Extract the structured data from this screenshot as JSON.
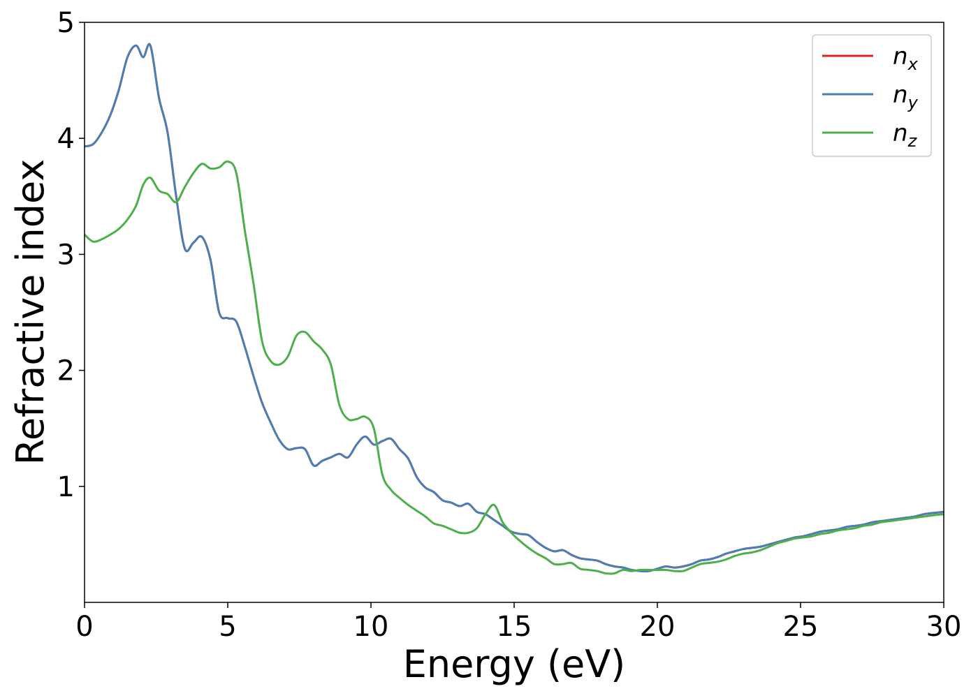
{
  "chart_data": {
    "type": "line",
    "title": "",
    "xlabel": "Energy (eV)",
    "ylabel": "Refractive index",
    "xlim": [
      0,
      30
    ],
    "ylim": [
      0,
      5
    ],
    "xticks": [
      0,
      5,
      10,
      15,
      20,
      25,
      30
    ],
    "yticks": [
      1,
      2,
      3,
      4,
      5
    ],
    "grid": false,
    "legend": "top-right",
    "series": [
      {
        "name": "n",
        "sub": "x",
        "color": "#d62728",
        "x": [
          0,
          0.3,
          0.6,
          0.9,
          1.2,
          1.5,
          1.8,
          2.05,
          2.3,
          2.6,
          2.9,
          3.2,
          3.5,
          3.8,
          4.1,
          4.4,
          4.7,
          5.0,
          5.3,
          5.6,
          5.9,
          6.2,
          6.5,
          6.8,
          7.1,
          7.4,
          7.7,
          8.0,
          8.3,
          8.6,
          8.9,
          9.2,
          9.5,
          9.8,
          10.1,
          10.4,
          10.7,
          11.0,
          11.3,
          11.6,
          11.9,
          12.2,
          12.5,
          12.8,
          13.1,
          13.4,
          13.7,
          14.0,
          14.3,
          14.6,
          14.9,
          15.2,
          15.5,
          15.8,
          16.1,
          16.4,
          16.7,
          17.0,
          17.3,
          17.6,
          17.9,
          18.2,
          18.5,
          18.8,
          19.1,
          19.4,
          19.7,
          20.0,
          20.3,
          20.6,
          20.9,
          21.2,
          21.5,
          21.8,
          22.1,
          22.4,
          22.7,
          23.0,
          23.3,
          23.6,
          23.9,
          24.2,
          24.5,
          24.8,
          25.1,
          25.4,
          25.7,
          26.0,
          26.3,
          26.6,
          26.9,
          27.2,
          27.5,
          27.8,
          28.1,
          28.4,
          28.7,
          29.0,
          29.3,
          29.6,
          30.0
        ],
        "y": [
          3.93,
          3.95,
          4.05,
          4.2,
          4.42,
          4.7,
          4.8,
          4.7,
          4.8,
          4.35,
          4.05,
          3.5,
          3.05,
          3.1,
          3.15,
          2.95,
          2.5,
          2.45,
          2.42,
          2.2,
          1.95,
          1.72,
          1.55,
          1.4,
          1.32,
          1.33,
          1.32,
          1.18,
          1.22,
          1.25,
          1.28,
          1.25,
          1.36,
          1.43,
          1.36,
          1.39,
          1.41,
          1.32,
          1.24,
          1.08,
          0.99,
          0.95,
          0.88,
          0.86,
          0.83,
          0.85,
          0.78,
          0.76,
          0.71,
          0.66,
          0.61,
          0.59,
          0.58,
          0.52,
          0.47,
          0.44,
          0.45,
          0.41,
          0.38,
          0.37,
          0.36,
          0.33,
          0.31,
          0.3,
          0.28,
          0.27,
          0.27,
          0.29,
          0.31,
          0.3,
          0.31,
          0.33,
          0.36,
          0.37,
          0.39,
          0.42,
          0.44,
          0.46,
          0.47,
          0.48,
          0.5,
          0.52,
          0.54,
          0.56,
          0.57,
          0.59,
          0.61,
          0.62,
          0.63,
          0.65,
          0.66,
          0.67,
          0.69,
          0.7,
          0.71,
          0.72,
          0.73,
          0.74,
          0.76,
          0.77,
          0.78
        ]
      },
      {
        "name": "n",
        "sub": "y",
        "color": "#4a7fb6",
        "x": [
          0,
          0.3,
          0.6,
          0.9,
          1.2,
          1.5,
          1.8,
          2.05,
          2.3,
          2.6,
          2.9,
          3.2,
          3.5,
          3.8,
          4.1,
          4.4,
          4.7,
          5.0,
          5.3,
          5.6,
          5.9,
          6.2,
          6.5,
          6.8,
          7.1,
          7.4,
          7.7,
          8.0,
          8.3,
          8.6,
          8.9,
          9.2,
          9.5,
          9.8,
          10.1,
          10.4,
          10.7,
          11.0,
          11.3,
          11.6,
          11.9,
          12.2,
          12.5,
          12.8,
          13.1,
          13.4,
          13.7,
          14.0,
          14.3,
          14.6,
          14.9,
          15.2,
          15.5,
          15.8,
          16.1,
          16.4,
          16.7,
          17.0,
          17.3,
          17.6,
          17.9,
          18.2,
          18.5,
          18.8,
          19.1,
          19.4,
          19.7,
          20.0,
          20.3,
          20.6,
          20.9,
          21.2,
          21.5,
          21.8,
          22.1,
          22.4,
          22.7,
          23.0,
          23.3,
          23.6,
          23.9,
          24.2,
          24.5,
          24.8,
          25.1,
          25.4,
          25.7,
          26.0,
          26.3,
          26.6,
          26.9,
          27.2,
          27.5,
          27.8,
          28.1,
          28.4,
          28.7,
          29.0,
          29.3,
          29.6,
          30.0
        ],
        "y": [
          3.93,
          3.95,
          4.05,
          4.2,
          4.42,
          4.7,
          4.8,
          4.7,
          4.8,
          4.35,
          4.05,
          3.5,
          3.05,
          3.1,
          3.15,
          2.95,
          2.5,
          2.45,
          2.42,
          2.2,
          1.95,
          1.72,
          1.55,
          1.4,
          1.32,
          1.33,
          1.32,
          1.18,
          1.22,
          1.25,
          1.28,
          1.25,
          1.36,
          1.43,
          1.36,
          1.39,
          1.41,
          1.32,
          1.24,
          1.08,
          0.99,
          0.95,
          0.88,
          0.86,
          0.83,
          0.85,
          0.78,
          0.76,
          0.71,
          0.66,
          0.61,
          0.59,
          0.58,
          0.52,
          0.47,
          0.44,
          0.45,
          0.41,
          0.38,
          0.37,
          0.36,
          0.33,
          0.31,
          0.3,
          0.28,
          0.27,
          0.27,
          0.29,
          0.31,
          0.3,
          0.31,
          0.33,
          0.36,
          0.37,
          0.39,
          0.42,
          0.44,
          0.46,
          0.47,
          0.48,
          0.5,
          0.52,
          0.54,
          0.56,
          0.57,
          0.59,
          0.61,
          0.62,
          0.63,
          0.65,
          0.66,
          0.67,
          0.69,
          0.7,
          0.71,
          0.72,
          0.73,
          0.74,
          0.76,
          0.77,
          0.78
        ]
      },
      {
        "name": "n",
        "sub": "z",
        "color": "#4daf4a",
        "x": [
          0,
          0.3,
          0.6,
          0.9,
          1.2,
          1.5,
          1.8,
          2.05,
          2.3,
          2.6,
          2.9,
          3.2,
          3.5,
          3.8,
          4.1,
          4.4,
          4.7,
          5.0,
          5.3,
          5.6,
          5.9,
          6.2,
          6.5,
          6.8,
          7.1,
          7.4,
          7.7,
          8.0,
          8.3,
          8.6,
          8.9,
          9.2,
          9.5,
          9.8,
          10.1,
          10.4,
          10.7,
          11.0,
          11.3,
          11.6,
          11.9,
          12.2,
          12.5,
          12.8,
          13.1,
          13.4,
          13.7,
          14.0,
          14.3,
          14.6,
          14.9,
          15.2,
          15.5,
          15.8,
          16.1,
          16.4,
          16.7,
          17.0,
          17.3,
          17.6,
          17.9,
          18.2,
          18.5,
          18.8,
          19.1,
          19.4,
          19.7,
          20.0,
          20.3,
          20.6,
          20.9,
          21.2,
          21.5,
          21.8,
          22.1,
          22.4,
          22.7,
          23.0,
          23.3,
          23.6,
          23.9,
          24.2,
          24.5,
          24.8,
          25.1,
          25.4,
          25.7,
          26.0,
          26.3,
          26.6,
          26.9,
          27.2,
          27.5,
          27.8,
          28.1,
          28.4,
          28.7,
          29.0,
          29.3,
          29.6,
          30.0
        ],
        "y": [
          3.17,
          3.11,
          3.13,
          3.17,
          3.22,
          3.3,
          3.42,
          3.6,
          3.66,
          3.55,
          3.52,
          3.45,
          3.58,
          3.7,
          3.78,
          3.74,
          3.75,
          3.8,
          3.7,
          3.2,
          2.75,
          2.25,
          2.08,
          2.05,
          2.12,
          2.3,
          2.33,
          2.25,
          2.18,
          2.05,
          1.7,
          1.58,
          1.58,
          1.6,
          1.5,
          1.1,
          0.97,
          0.9,
          0.84,
          0.79,
          0.74,
          0.68,
          0.66,
          0.63,
          0.6,
          0.6,
          0.64,
          0.76,
          0.84,
          0.69,
          0.6,
          0.53,
          0.47,
          0.42,
          0.38,
          0.33,
          0.33,
          0.34,
          0.29,
          0.28,
          0.27,
          0.25,
          0.25,
          0.28,
          0.27,
          0.28,
          0.28,
          0.28,
          0.28,
          0.27,
          0.27,
          0.3,
          0.33,
          0.34,
          0.35,
          0.37,
          0.4,
          0.42,
          0.43,
          0.45,
          0.48,
          0.51,
          0.53,
          0.55,
          0.56,
          0.57,
          0.59,
          0.6,
          0.62,
          0.63,
          0.64,
          0.66,
          0.67,
          0.69,
          0.7,
          0.71,
          0.72,
          0.73,
          0.74,
          0.75,
          0.76
        ]
      }
    ]
  }
}
